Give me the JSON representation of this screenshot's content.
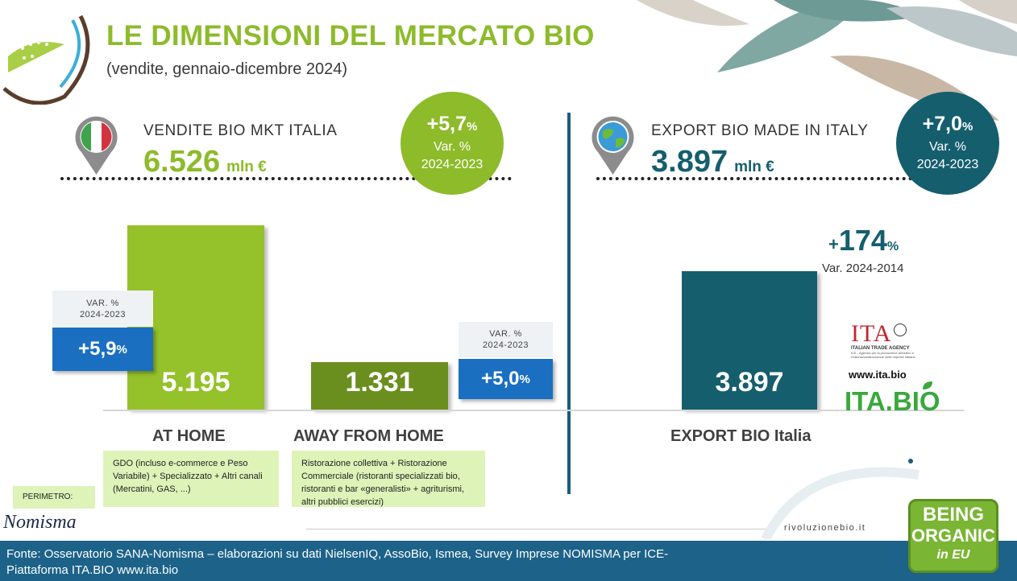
{
  "header": {
    "title": "LE DIMENSIONI DEL MERCATO BIO",
    "subtitle": "(vendite, gennaio-dicembre 2024)"
  },
  "italy": {
    "label": "VENDITE BIO MKT ITALIA",
    "value": "6.526",
    "unit": "mln €",
    "change": "+5,7",
    "change_pct": "%",
    "change_label": "Var. %",
    "change_period": "2024-2023"
  },
  "export": {
    "label": "EXPORT BIO MADE IN ITALY",
    "value": "3.897",
    "unit": "mln €",
    "change": "+7,0",
    "change_pct": "%",
    "change_label": "Var. %",
    "change_period": "2024-2023",
    "longterm_plus": "+",
    "longterm_value": "174",
    "longterm_pct": "%",
    "longterm_label": "Var. 2024-2014"
  },
  "chart_data": {
    "type": "bar",
    "unit": "mln €",
    "categories": [
      "AT HOME",
      "AWAY FROM HOME",
      "EXPORT BIO Italia"
    ],
    "values": [
      5195,
      1331,
      3897
    ],
    "value_labels": [
      "5.195",
      "1.331",
      "3.897"
    ],
    "bar_colors": [
      "#95c12b",
      "#6a8f1e",
      "#155e6e"
    ],
    "variations": [
      {
        "label": "VAR. %",
        "period": "2024-2023",
        "value": "+5,9",
        "pct": "%"
      },
      {
        "label": "VAR. %",
        "period": "2024-2023",
        "value": "+5,0",
        "pct": "%"
      }
    ]
  },
  "notes": {
    "at_home": "GDO (incluso e-commerce e Peso Variabile) + Specializzato + Altri canali (Mercatini, GAS, ...)",
    "away": "Ristorazione collettiva + Ristorazione Commerciale (ristoranti specializzati bio, ristoranti e bar «generalisti» + agriturismi, altri pubblici esercizi)"
  },
  "perimeter_label": "PERIMETRO:",
  "logos": {
    "nomisma": "Nomisma",
    "ita": "ITA",
    "ita_agency": "ITALIAN TRADE AGENCY",
    "ita_desc": "ICE - Agenzia per la promozione all'estero e l'internazionalizzazione delle imprese italiane",
    "ita_url": "www.ita.bio",
    "ita_bio": "ITA.BIO",
    "site": "rivoluzionebio.it",
    "being_organic_1": "BEING",
    "being_organic_2": "ORGANIC",
    "being_organic_3": "in EU"
  },
  "footer": {
    "line1": "Fonte: Osservatorio SANA-Nomisma – elaborazioni su dati NielsenIQ, AssoBio, Ismea, Survey Imprese NOMISMA per ICE-",
    "line2": "Piattaforma ITA.BIO www.ita.bio"
  },
  "colors": {
    "green": "#8dbb2a",
    "dark_green": "#6a8f1e",
    "teal": "#155e6e",
    "blue": "#1a6fc1",
    "footer": "#1c6289"
  }
}
